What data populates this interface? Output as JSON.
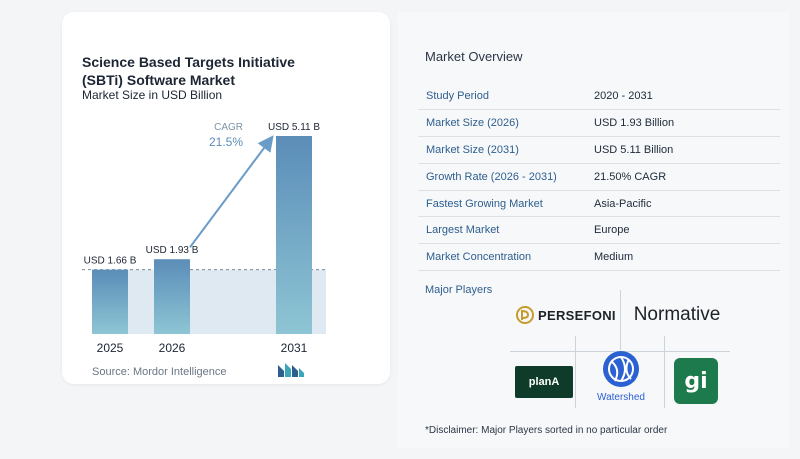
{
  "title": "Science Based Targets Initiative (SBTi) Software Market",
  "subtitle": "Market Size in USD Billion",
  "source": "Source: Mordor Intelligence",
  "chart_data": {
    "type": "bar",
    "categories": [
      "2025",
      "2026",
      "2031"
    ],
    "values": [
      1.66,
      1.93,
      5.11
    ],
    "data_labels": [
      "USD 1.66 B",
      "USD 1.93 B",
      "USD 5.11 B"
    ],
    "title": "Science Based Targets Initiative (SBTi) Software Market",
    "ylabel": "",
    "xlabel": "",
    "ylim": [
      0,
      5.11
    ],
    "annotation": {
      "label": "CAGR",
      "value": "21.5%"
    },
    "colors": {
      "bar_top": "#5b8db8",
      "bar_bottom": "#8ec5d4",
      "band": "#dfe9f1",
      "arrow": "#6a9cc7"
    },
    "grid": false
  },
  "overview": {
    "title": "Market Overview",
    "rows": [
      {
        "key": "Study Period",
        "value": "2020 - 2031"
      },
      {
        "key": "Market Size (2026)",
        "value": "USD 1.93 Billion"
      },
      {
        "key": "Market Size (2031)",
        "value": "USD 5.11 Billion"
      },
      {
        "key": "Growth Rate (2026 - 2031)",
        "value": "21.50% CAGR"
      },
      {
        "key": "Fastest Growing Market",
        "value": "Asia-Pacific"
      },
      {
        "key": "Largest Market",
        "value": "Europe"
      },
      {
        "key": "Market Concentration",
        "value": "Medium"
      }
    ]
  },
  "players": {
    "title": "Major Players",
    "names": [
      "PERSEFONI",
      "Normative",
      "planA",
      "Watershed",
      "gi"
    ]
  },
  "disclaimer": "*Disclaimer: Major Players sorted in no particular order"
}
